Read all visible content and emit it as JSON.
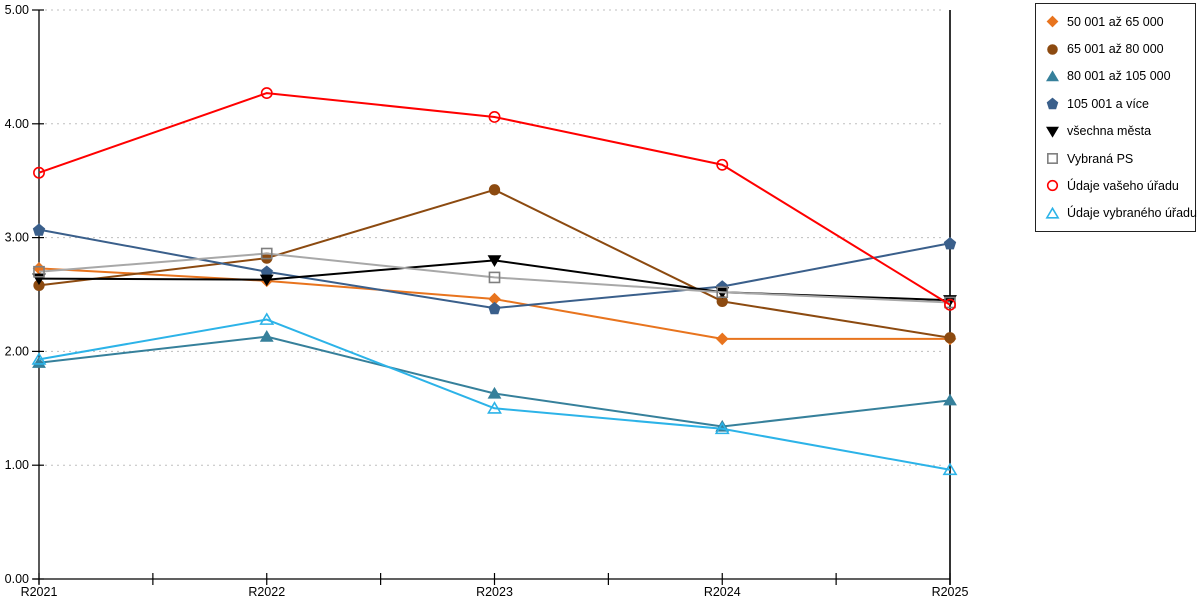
{
  "chart_data": {
    "type": "line",
    "title": "",
    "xlabel": "",
    "ylabel": "",
    "categories": [
      "R2021",
      "R2022",
      "R2023",
      "R2024",
      "R2025"
    ],
    "ylim": [
      0,
      5
    ],
    "ytick_values": [
      0,
      1,
      2,
      3,
      4,
      5
    ],
    "ytick_labels": [
      "0.00",
      "1.00",
      "2.00",
      "3.00",
      "4.00",
      "5.00"
    ],
    "grid": "horizontal-dotted",
    "gridline_color": "#bfbfbf",
    "axis_color": "#000000",
    "right_border_line": true,
    "legend_position": "right",
    "series": [
      {
        "name": "50 001 až 65 000",
        "color": "#e8741e",
        "marker": "diamond",
        "marker_fill": "filled",
        "values": [
          2.73,
          2.62,
          2.46,
          2.11,
          2.11
        ]
      },
      {
        "name": "65 001 až 80 000",
        "color": "#8c4a10",
        "marker": "circle",
        "marker_fill": "filled",
        "values": [
          2.58,
          2.82,
          3.42,
          2.44,
          2.12
        ]
      },
      {
        "name": "80 001 až 105 000",
        "color": "#36809b",
        "marker": "triangle",
        "marker_fill": "filled",
        "values": [
          1.9,
          2.13,
          1.63,
          1.34,
          1.57
        ]
      },
      {
        "name": "105 001 a více",
        "color": "#3a5f8b",
        "marker": "pentagon",
        "marker_fill": "filled",
        "values": [
          3.07,
          2.7,
          2.38,
          2.57,
          2.95
        ]
      },
      {
        "name": "všechna města",
        "color": "#000000",
        "marker": "triangle-down",
        "marker_fill": "filled",
        "values": [
          2.64,
          2.63,
          2.8,
          2.52,
          2.45
        ]
      },
      {
        "name": "Vybraná PS",
        "color": "#a8a8a8",
        "marker": "square",
        "marker_fill": "open",
        "marker_color": "#7f7f7f",
        "values": [
          2.7,
          2.86,
          2.65,
          2.52,
          2.43
        ]
      },
      {
        "name": "Údaje vašeho úřadu",
        "color": "#ff0000",
        "marker": "circle",
        "marker_fill": "open",
        "values": [
          3.57,
          4.27,
          4.06,
          3.64,
          2.41
        ]
      },
      {
        "name": "Údaje vybraného úřadu",
        "color": "#2cb3e8",
        "marker": "triangle",
        "marker_fill": "open",
        "values": [
          1.93,
          2.28,
          1.5,
          1.32,
          0.96
        ]
      }
    ]
  }
}
